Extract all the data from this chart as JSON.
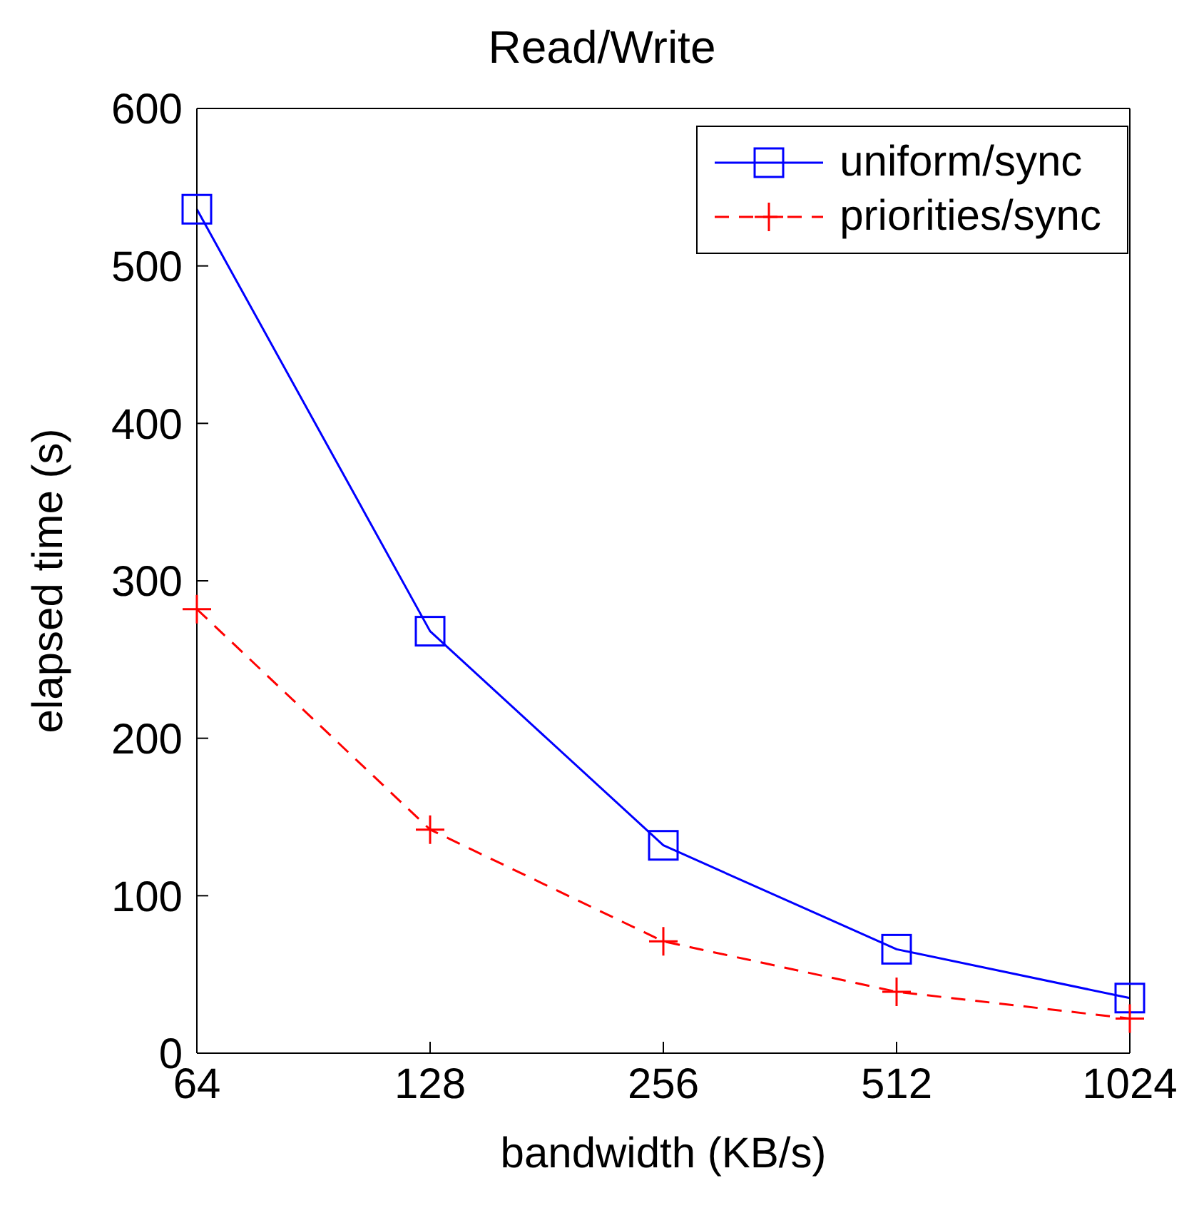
{
  "chart_data": {
    "type": "line",
    "title": "Read/Write",
    "xlabel": "bandwidth (KB/s)",
    "ylabel": "elapsed time (s)",
    "x": [
      64,
      128,
      256,
      512,
      1024
    ],
    "log": "x",
    "xlim": [
      64,
      1024
    ],
    "xticks": [
      64,
      128,
      256,
      512,
      1024
    ],
    "ylim": [
      0,
      600
    ],
    "yticks": [
      0,
      100,
      200,
      300,
      400,
      500,
      600
    ],
    "legend": "top right",
    "series": [
      {
        "name": "uniform/sync",
        "color": "#0000ff",
        "values": [
          536,
          268,
          132,
          66,
          35
        ],
        "marker": "square",
        "line_style": "solid"
      },
      {
        "name": "priorities/sync",
        "color": "#ff0000",
        "values": [
          282,
          142,
          71,
          39,
          22
        ],
        "marker": "cross",
        "line_style": "dashed"
      }
    ]
  }
}
